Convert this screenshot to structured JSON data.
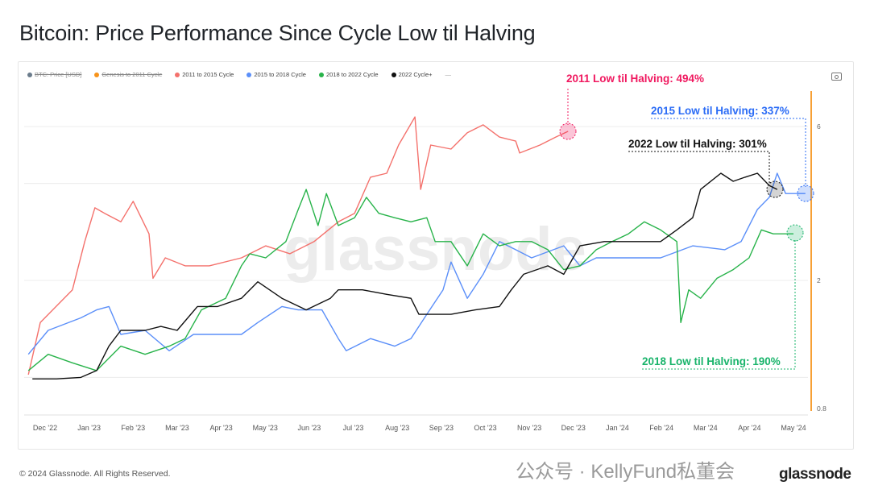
{
  "title": "Bitcoin: Price Performance Since Cycle Low til Halving",
  "footer": "© 2024 Glassnode. All Rights Reserved.",
  "brand": "glassnode",
  "watermark_overlay": "公众号 · KellyFund私董会",
  "icons": {
    "camera": "camera-icon"
  },
  "colors": {
    "red": "#f4716c",
    "blue": "#5b8ff9",
    "green": "#28b34a",
    "black": "#111111",
    "halving": "#f7a035",
    "red_ann": "#f0185f",
    "blue_ann": "#2b6cf6",
    "green_ann": "#19b46b"
  },
  "chart_data": {
    "type": "line",
    "title": "Bitcoin: Price Performance Since Cycle Low til Halving",
    "x_unit": "months since Dec '22",
    "y_scale": "log",
    "ylim": [
      0.8,
      6.5
    ],
    "y_ticks": [
      "6",
      "2",
      "0.8"
    ],
    "y_tick_values": [
      6,
      2,
      0.8
    ],
    "grid_values": [
      1,
      2,
      4,
      6
    ],
    "x_ticks": [
      "Dec '22",
      "Jan '23",
      "Feb '23",
      "Mar '23",
      "Apr '23",
      "May '23",
      "Jun '23",
      "Jul '23",
      "Aug '23",
      "Sep '23",
      "Oct '23",
      "Nov '23",
      "Dec '23",
      "Jan '24",
      "Feb '24",
      "Mar '24",
      "Apr '24",
      "May '24"
    ],
    "legend": [
      {
        "label": "BTC: Price [USD]",
        "color": "#6b7c8c",
        "disabled": true
      },
      {
        "label": "Genesis to 2011 Cycle",
        "color": "#f7931a",
        "disabled": true
      },
      {
        "label": "2011 to 2015 Cycle",
        "color": "#f4716c",
        "disabled": false
      },
      {
        "label": "2015 to 2018 Cycle",
        "color": "#5b8ff9",
        "disabled": false
      },
      {
        "label": "2018 to 2022 Cycle",
        "color": "#28b34a",
        "disabled": false
      },
      {
        "label": "2022 Cycle+",
        "color": "#111111",
        "disabled": false
      }
    ],
    "series": [
      {
        "name": "2011 to 2015 Cycle",
        "color": "#f4716c",
        "points": [
          [
            -0.38,
            1.02
          ],
          [
            -0.11,
            1.48
          ],
          [
            0.62,
            1.87
          ],
          [
            0.9,
            2.64
          ],
          [
            1.13,
            3.36
          ],
          [
            1.35,
            3.23
          ],
          [
            1.72,
            3.04
          ],
          [
            2.0,
            3.52
          ],
          [
            2.36,
            2.79
          ],
          [
            2.45,
            2.03
          ],
          [
            2.73,
            2.35
          ],
          [
            3.18,
            2.22
          ],
          [
            3.73,
            2.22
          ],
          [
            4.46,
            2.35
          ],
          [
            5.01,
            2.56
          ],
          [
            5.56,
            2.42
          ],
          [
            6.11,
            2.64
          ],
          [
            6.66,
            3.04
          ],
          [
            7.03,
            3.23
          ],
          [
            7.39,
            4.18
          ],
          [
            7.76,
            4.3
          ],
          [
            8.03,
            5.26
          ],
          [
            8.4,
            6.43
          ],
          [
            8.53,
            3.83
          ],
          [
            8.76,
            5.26
          ],
          [
            9.22,
            5.11
          ],
          [
            9.59,
            5.74
          ],
          [
            9.95,
            6.08
          ],
          [
            10.32,
            5.57
          ],
          [
            10.69,
            5.41
          ],
          [
            10.78,
            4.97
          ],
          [
            11.24,
            5.26
          ],
          [
            11.6,
            5.57
          ],
          [
            11.88,
            5.8
          ]
        ]
      },
      {
        "name": "2015 to 2018 Cycle",
        "color": "#5b8ff9",
        "points": [
          [
            -0.38,
            1.18
          ],
          [
            0.07,
            1.4
          ],
          [
            0.81,
            1.53
          ],
          [
            1.17,
            1.62
          ],
          [
            1.45,
            1.66
          ],
          [
            1.72,
            1.36
          ],
          [
            2.27,
            1.4
          ],
          [
            2.82,
            1.21
          ],
          [
            3.37,
            1.36
          ],
          [
            3.92,
            1.36
          ],
          [
            4.46,
            1.36
          ],
          [
            4.83,
            1.48
          ],
          [
            5.38,
            1.66
          ],
          [
            5.75,
            1.62
          ],
          [
            6.29,
            1.62
          ],
          [
            6.66,
            1.32
          ],
          [
            6.84,
            1.21
          ],
          [
            7.39,
            1.32
          ],
          [
            7.94,
            1.25
          ],
          [
            8.31,
            1.32
          ],
          [
            8.67,
            1.57
          ],
          [
            9.04,
            1.87
          ],
          [
            9.22,
            2.28
          ],
          [
            9.59,
            1.76
          ],
          [
            9.95,
            2.09
          ],
          [
            10.32,
            2.64
          ],
          [
            10.69,
            2.49
          ],
          [
            11.05,
            2.35
          ],
          [
            11.78,
            2.56
          ],
          [
            12.15,
            2.22
          ],
          [
            12.52,
            2.35
          ],
          [
            13.25,
            2.35
          ],
          [
            13.98,
            2.35
          ],
          [
            14.71,
            2.56
          ],
          [
            15.44,
            2.49
          ],
          [
            15.81,
            2.64
          ],
          [
            16.18,
            3.32
          ],
          [
            16.45,
            3.62
          ],
          [
            16.63,
            4.3
          ],
          [
            16.82,
            3.72
          ],
          [
            17.27,
            3.72
          ]
        ]
      },
      {
        "name": "2018 to 2022 Cycle",
        "color": "#28b34a",
        "points": [
          [
            -0.38,
            1.05
          ],
          [
            0.07,
            1.18
          ],
          [
            0.62,
            1.11
          ],
          [
            1.17,
            1.05
          ],
          [
            1.72,
            1.25
          ],
          [
            2.27,
            1.18
          ],
          [
            2.82,
            1.25
          ],
          [
            3.18,
            1.32
          ],
          [
            3.55,
            1.62
          ],
          [
            4.1,
            1.76
          ],
          [
            4.46,
            2.22
          ],
          [
            4.65,
            2.42
          ],
          [
            5.01,
            2.35
          ],
          [
            5.47,
            2.64
          ],
          [
            5.75,
            3.32
          ],
          [
            5.93,
            3.83
          ],
          [
            6.2,
            2.96
          ],
          [
            6.39,
            3.72
          ],
          [
            6.66,
            2.96
          ],
          [
            7.03,
            3.13
          ],
          [
            7.3,
            3.62
          ],
          [
            7.58,
            3.23
          ],
          [
            7.94,
            3.13
          ],
          [
            8.31,
            3.04
          ],
          [
            8.67,
            3.13
          ],
          [
            8.86,
            2.64
          ],
          [
            9.22,
            2.64
          ],
          [
            9.59,
            2.22
          ],
          [
            9.95,
            2.79
          ],
          [
            10.32,
            2.56
          ],
          [
            10.69,
            2.64
          ],
          [
            11.05,
            2.64
          ],
          [
            11.42,
            2.49
          ],
          [
            11.78,
            2.16
          ],
          [
            12.15,
            2.22
          ],
          [
            12.52,
            2.49
          ],
          [
            12.88,
            2.64
          ],
          [
            13.25,
            2.79
          ],
          [
            13.61,
            3.04
          ],
          [
            13.98,
            2.87
          ],
          [
            14.35,
            2.64
          ],
          [
            14.44,
            1.48
          ],
          [
            14.62,
            1.87
          ],
          [
            14.89,
            1.76
          ],
          [
            15.26,
            2.03
          ],
          [
            15.63,
            2.16
          ],
          [
            15.99,
            2.35
          ],
          [
            16.27,
            2.87
          ],
          [
            16.54,
            2.79
          ],
          [
            16.82,
            2.79
          ],
          [
            17.0,
            2.79
          ]
        ]
      },
      {
        "name": "2022 Cycle+",
        "color": "#111111",
        "points": [
          [
            -0.29,
            0.99
          ],
          [
            0.26,
            0.99
          ],
          [
            0.81,
            1.0
          ],
          [
            1.17,
            1.05
          ],
          [
            1.45,
            1.25
          ],
          [
            1.72,
            1.4
          ],
          [
            2.27,
            1.4
          ],
          [
            2.63,
            1.44
          ],
          [
            3.0,
            1.4
          ],
          [
            3.46,
            1.66
          ],
          [
            3.92,
            1.66
          ],
          [
            4.46,
            1.76
          ],
          [
            4.83,
            1.98
          ],
          [
            5.38,
            1.76
          ],
          [
            5.93,
            1.62
          ],
          [
            6.48,
            1.76
          ],
          [
            6.66,
            1.87
          ],
          [
            7.21,
            1.87
          ],
          [
            7.76,
            1.81
          ],
          [
            8.31,
            1.76
          ],
          [
            8.49,
            1.57
          ],
          [
            9.22,
            1.57
          ],
          [
            9.77,
            1.62
          ],
          [
            10.32,
            1.66
          ],
          [
            10.59,
            1.87
          ],
          [
            10.87,
            2.09
          ],
          [
            11.42,
            2.22
          ],
          [
            11.78,
            2.09
          ],
          [
            12.15,
            2.56
          ],
          [
            12.7,
            2.64
          ],
          [
            13.25,
            2.64
          ],
          [
            13.61,
            2.64
          ],
          [
            13.98,
            2.64
          ],
          [
            14.35,
            2.87
          ],
          [
            14.71,
            3.13
          ],
          [
            14.89,
            3.83
          ],
          [
            15.35,
            4.3
          ],
          [
            15.63,
            4.06
          ],
          [
            15.9,
            4.18
          ],
          [
            16.18,
            4.3
          ],
          [
            16.45,
            3.94
          ],
          [
            16.63,
            3.83
          ]
        ]
      }
    ],
    "annotations": [
      {
        "text": "2011 Low til Halving: 494%",
        "series": "2011 to 2015 Cycle"
      },
      {
        "text": "2015 Low til Halving: 337%",
        "series": "2015 to 2018 Cycle"
      },
      {
        "text": "2022 Low til Halving: 301%",
        "series": "2022 Cycle+"
      },
      {
        "text": "2018 Low til Halving: 190%",
        "series": "2018 to 2022 Cycle"
      }
    ]
  }
}
